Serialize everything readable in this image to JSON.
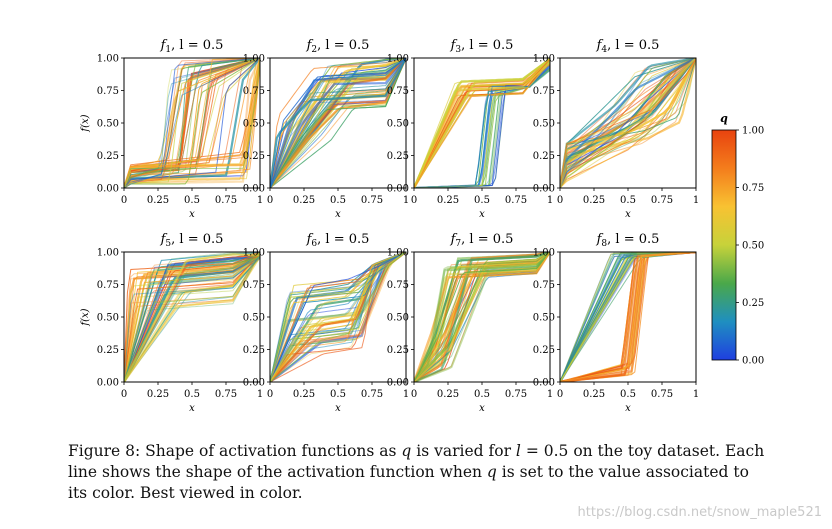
{
  "figure": {
    "panels": [
      {
        "func": "f",
        "sub": "1",
        "l_label": "l = 0.5",
        "xlabel": "x",
        "ylabel": "f(x)"
      },
      {
        "func": "f",
        "sub": "2",
        "l_label": "l = 0.5",
        "xlabel": "x",
        "ylabel": ""
      },
      {
        "func": "f",
        "sub": "3",
        "l_label": "l = 0.5",
        "xlabel": "x",
        "ylabel": ""
      },
      {
        "func": "f",
        "sub": "4",
        "l_label": "l = 0.5",
        "xlabel": "x",
        "ylabel": ""
      },
      {
        "func": "f",
        "sub": "5",
        "l_label": "l = 0.5",
        "xlabel": "x",
        "ylabel": "f(x)"
      },
      {
        "func": "f",
        "sub": "6",
        "l_label": "l = 0.5",
        "xlabel": "x",
        "ylabel": ""
      },
      {
        "func": "f",
        "sub": "7",
        "l_label": "l = 0.5",
        "xlabel": "x",
        "ylabel": ""
      },
      {
        "func": "f",
        "sub": "8",
        "l_label": "l = 0.5",
        "xlabel": "x",
        "ylabel": ""
      }
    ],
    "x_ticks": [
      "0",
      "0.25",
      "0.5",
      "0.75",
      "1"
    ],
    "y_ticks": [
      "0.00",
      "0.25",
      "0.50",
      "0.75",
      "1.00"
    ],
    "colorbar": {
      "label": "q",
      "ticks": [
        "0.00",
        "0.25",
        "0.50",
        "0.75",
        "1.00"
      ],
      "colors": [
        "#1f3fe0",
        "#1f8fc0",
        "#4aa84a",
        "#c7d23a",
        "#f8c232",
        "#f47d1c",
        "#e8430f"
      ]
    }
  },
  "caption": {
    "prefix": "Figure 8: Shape of activation functions as ",
    "var_q": "q",
    "middle": " is varied for ",
    "var_l": "l",
    "equation_value": " = 0.5",
    "rest": " on the toy dataset. Each line shows the shape of the activation function when ",
    "var_q2": "q",
    "end": " is set to the value associated to its color. Best viewed in color."
  },
  "watermark": "https://blog.csdn.net/snow_maple521"
}
